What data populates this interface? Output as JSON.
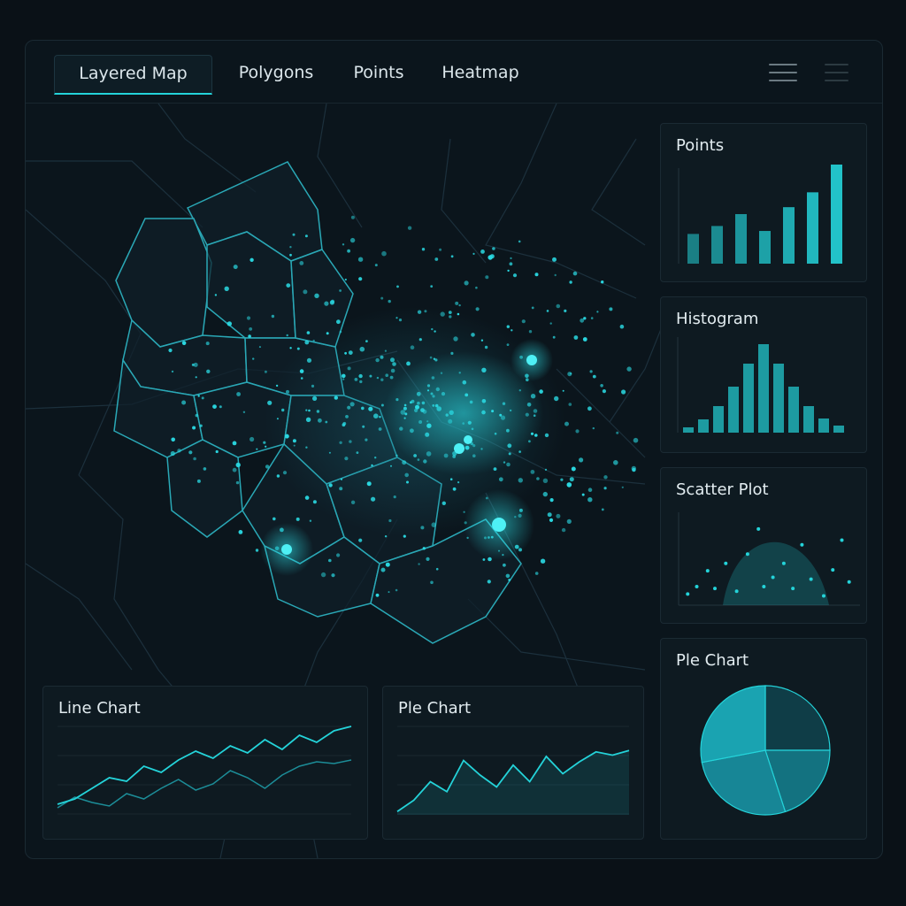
{
  "tabs": [
    {
      "label": "Layered Map",
      "active": true
    },
    {
      "label": "Polygons",
      "active": false
    },
    {
      "label": "Points",
      "active": false
    },
    {
      "label": "Heatmap",
      "active": false
    }
  ],
  "toolbar": {
    "icons": [
      "menu-icon",
      "menu-icon-secondary"
    ]
  },
  "colors": {
    "accent": "#24d3d9",
    "background": "#0a1117",
    "panel": "#0e1a21"
  },
  "panels": {
    "points": {
      "title": "Points"
    },
    "histogram": {
      "title": "Histogram"
    },
    "scatter": {
      "title": "Scatter Plot"
    },
    "pie": {
      "title": "Ple Chart"
    },
    "line": {
      "title": "Line Chart"
    },
    "area": {
      "title": "Ple Chart"
    }
  },
  "chart_data": [
    {
      "type": "bar",
      "title": "Points",
      "values": [
        30,
        38,
        50,
        33,
        57,
        72,
        100
      ]
    },
    {
      "type": "bar",
      "title": "Histogram",
      "values": [
        6,
        15,
        30,
        52,
        78,
        100,
        78,
        52,
        30,
        16,
        8
      ]
    },
    {
      "type": "scatter",
      "title": "Scatter Plot",
      "points": [
        [
          0.05,
          0.88
        ],
        [
          0.1,
          0.8
        ],
        [
          0.16,
          0.63
        ],
        [
          0.2,
          0.82
        ],
        [
          0.26,
          0.55
        ],
        [
          0.32,
          0.85
        ],
        [
          0.38,
          0.45
        ],
        [
          0.44,
          0.18
        ],
        [
          0.47,
          0.8
        ],
        [
          0.52,
          0.7
        ],
        [
          0.58,
          0.55
        ],
        [
          0.63,
          0.82
        ],
        [
          0.68,
          0.35
        ],
        [
          0.73,
          0.72
        ],
        [
          0.8,
          0.9
        ],
        [
          0.85,
          0.62
        ],
        [
          0.9,
          0.3
        ],
        [
          0.94,
          0.75
        ]
      ]
    },
    {
      "type": "pie",
      "title": "Ple Chart",
      "values": [
        25,
        20,
        27,
        28
      ]
    },
    {
      "type": "line",
      "title": "Line Chart",
      "series": [
        {
          "values": [
            12,
            18,
            30,
            42,
            38,
            55,
            48,
            62,
            72,
            64,
            78,
            70,
            85,
            74,
            90,
            82,
            95,
            100
          ]
        },
        {
          "values": [
            8,
            20,
            14,
            10,
            24,
            18,
            30,
            40,
            28,
            35,
            50,
            42,
            30,
            45,
            55,
            60,
            58,
            62
          ]
        }
      ]
    },
    {
      "type": "area",
      "title": "Ple Chart",
      "values": [
        5,
        22,
        50,
        35,
        82,
        60,
        42,
        75,
        50,
        88,
        62,
        80,
        95,
        90,
        97
      ]
    }
  ]
}
